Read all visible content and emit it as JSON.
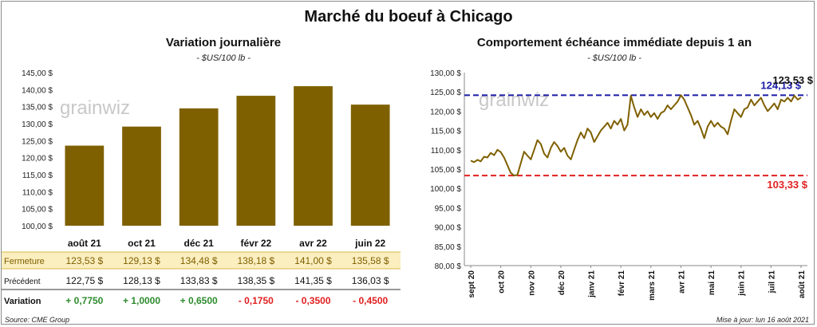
{
  "main_title": "Marché du boeuf à Chicago",
  "source": "Source: CME Group",
  "updated": "Mise à jour: lun 16 août 2021",
  "watermark": "grainwiz",
  "chart_data": [
    {
      "type": "bar",
      "title": "Variation  journalière",
      "subtitle": "- $US/100 lb -",
      "categories": [
        "août 21",
        "oct 21",
        "déc 21",
        "févr 22",
        "avr 22",
        "juin 22"
      ],
      "values": [
        123.53,
        129.13,
        134.48,
        138.18,
        141.0,
        135.58
      ],
      "ylim": [
        100,
        145
      ],
      "yticks": [
        "100,00 $",
        "105,00 $",
        "110,00 $",
        "115,00 $",
        "120,00 $",
        "125,00 $",
        "130,00 $",
        "135,00 $",
        "140,00 $",
        "145,00 $"
      ],
      "bar_color": "#7f6000",
      "table": {
        "rows": [
          {
            "label": "Fermeture",
            "values": [
              "123,53  $",
              "129,13  $",
              "134,48  $",
              "138,18  $",
              "141,00  $",
              "135,58  $"
            ],
            "bg": "#fbeebf"
          },
          {
            "label": "Précédent",
            "values": [
              "122,75  $",
              "128,13  $",
              "133,83  $",
              "138,35  $",
              "141,35  $",
              "136,03  $"
            ],
            "bg": "#ffffff"
          },
          {
            "label": "Variation",
            "values": [
              "+ 0,7750",
              "+ 1,0000",
              "+ 0,6500",
              "- 0,1750",
              "- 0,3500",
              "- 0,4500"
            ],
            "bg": "#ffffff",
            "colors": [
              "#2e8b2e",
              "#2e8b2e",
              "#2e8b2e",
              "#e02020",
              "#e02020",
              "#e02020"
            ]
          }
        ]
      }
    },
    {
      "type": "line",
      "title": "Comportement  échéance immédiate depuis 1 an",
      "subtitle": "- $US/100 lb -",
      "ylim": [
        80,
        130
      ],
      "yticks": [
        "80,00 $",
        "85,00 $",
        "90,00 $",
        "95,00 $",
        "100,00 $",
        "105,00 $",
        "110,00 $",
        "115,00 $",
        "120,00 $",
        "125,00 $",
        "130,00 $"
      ],
      "x_ticks": [
        "sept 20",
        "oct 20",
        "nov 20",
        "déc 20",
        "janv 21",
        "févr 21",
        "mars 21",
        "avr 21",
        "mai 21",
        "juin 21",
        "juil 21",
        "août 21"
      ],
      "line_color": "#7f6000",
      "max_line": {
        "value": 124.13,
        "label": "124,13 $",
        "color": "#1a1aa6"
      },
      "min_line": {
        "value": 103.33,
        "label": "103,33 $",
        "color": "#e02020"
      },
      "last_label": "123,53 $",
      "series": [
        107.2,
        106.8,
        107.4,
        107.0,
        108.2,
        108.0,
        109.2,
        108.6,
        110.0,
        109.4,
        108.0,
        106.0,
        104.0,
        103.33,
        103.5,
        106.5,
        109.5,
        108.5,
        107.5,
        110.0,
        112.5,
        111.5,
        109.0,
        108.0,
        110.5,
        112.0,
        111.0,
        109.5,
        110.5,
        108.5,
        107.5,
        110.0,
        112.5,
        114.5,
        113.0,
        115.5,
        114.5,
        112.0,
        113.5,
        115.0,
        116.0,
        117.0,
        115.5,
        117.5,
        116.5,
        118.0,
        115.0,
        116.5,
        124.0,
        121.0,
        118.5,
        120.5,
        119.0,
        120.0,
        118.5,
        119.5,
        118.0,
        119.5,
        120.0,
        121.5,
        120.5,
        121.5,
        122.5,
        124.13,
        123.0,
        121.0,
        119.0,
        116.5,
        117.5,
        115.5,
        113.0,
        116.0,
        117.5,
        116.0,
        117.0,
        116.0,
        115.5,
        114.0,
        117.5,
        120.5,
        119.5,
        118.5,
        120.5,
        121.0,
        123.0,
        121.5,
        122.5,
        123.5,
        121.5,
        120.0,
        121.0,
        122.0,
        120.5,
        123.0,
        122.5,
        123.5,
        122.5,
        124.0,
        123.0,
        123.53
      ]
    }
  ]
}
